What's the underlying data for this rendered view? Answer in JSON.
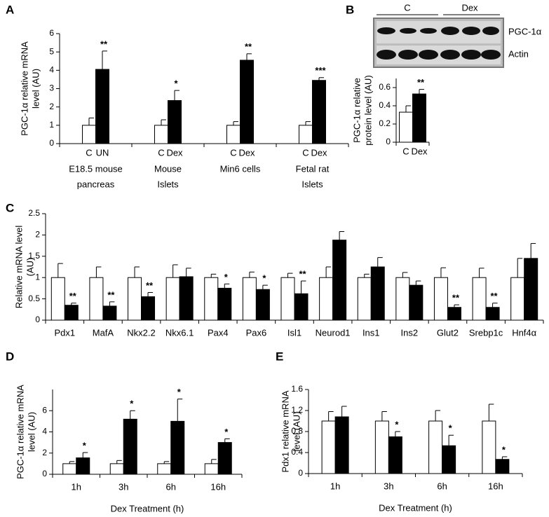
{
  "chart_data": [
    {
      "type": "bar",
      "panel": "A",
      "ylabel": [
        "PGC-1α relative mRNA",
        "level (AU)"
      ],
      "categories": [
        [
          "E18.5 mouse",
          "pancreas"
        ],
        [
          "Mouse",
          "Islets"
        ],
        [
          "Min6 cells"
        ],
        [
          "Fetal rat",
          "Islets"
        ]
      ],
      "bar_labels": [
        [
          "C",
          "UN"
        ],
        [
          "C",
          "Dex"
        ],
        [
          "C",
          "Dex"
        ],
        [
          "C",
          "Dex"
        ]
      ],
      "series": [
        {
          "color": "#ffffff",
          "values": [
            1,
            1,
            1,
            1
          ],
          "errors": [
            0.4,
            0.3,
            0.2,
            0.2
          ]
        },
        {
          "color": "#000000",
          "values": [
            4.05,
            2.35,
            4.55,
            3.45
          ],
          "errors": [
            1.0,
            0.55,
            0.35,
            0.15
          ],
          "significance": [
            "**",
            "*",
            "**",
            "***"
          ]
        }
      ],
      "ylim": [
        0,
        6
      ],
      "yticks": [
        0,
        1,
        2,
        3,
        4,
        5,
        6
      ]
    },
    {
      "type": "bar",
      "panel": "B",
      "ylabel": [
        "PGC-1α relative",
        "protein level (AU)"
      ],
      "blot": {
        "groups": [
          "C",
          "Dex"
        ],
        "bands": [
          "PGC-1α",
          "Actin"
        ]
      },
      "categories": [
        null
      ],
      "bar_labels": [
        [
          "C",
          "Dex"
        ]
      ],
      "series": [
        {
          "color": "#ffffff",
          "values": [
            0.33
          ],
          "errors": [
            0.07
          ]
        },
        {
          "color": "#000000",
          "values": [
            0.53
          ],
          "errors": [
            0.05
          ],
          "significance": [
            "**"
          ]
        }
      ],
      "ylim": [
        0,
        0.7
      ],
      "yticks": [
        0,
        0.2,
        0.4,
        0.6
      ]
    },
    {
      "type": "bar",
      "panel": "C",
      "ylabel": [
        "Relative mRNA level",
        "(AU)"
      ],
      "categories": [
        "Pdx1",
        "MafA",
        "Nkx2.2",
        "Nkx6.1",
        "Pax4",
        "Pax6",
        "Isl1",
        "Neurod1",
        "Ins1",
        "Ins2",
        "Glut2",
        "Srebp1c",
        "Hnf4α"
      ],
      "series": [
        {
          "color": "#ffffff",
          "values": [
            1,
            1,
            1,
            1,
            1,
            1,
            1,
            1,
            1,
            1,
            1,
            1,
            1
          ],
          "errors": [
            0.33,
            0.25,
            0.25,
            0.3,
            0.08,
            0.13,
            0.1,
            0.25,
            0.08,
            0.12,
            0.23,
            0.22,
            0.45
          ]
        },
        {
          "color": "#000000",
          "values": [
            0.35,
            0.33,
            0.55,
            1.02,
            0.75,
            0.72,
            0.62,
            1.88,
            1.25,
            0.82,
            0.3,
            0.3,
            1.45
          ],
          "errors": [
            0.05,
            0.1,
            0.1,
            0.2,
            0.1,
            0.1,
            0.3,
            0.2,
            0.22,
            0.1,
            0.06,
            0.1,
            0.35
          ],
          "significance": [
            "**",
            "**",
            "**",
            null,
            "*",
            "*",
            "**",
            null,
            null,
            null,
            "**",
            "**",
            null
          ]
        }
      ],
      "ylim": [
        0,
        2.5
      ],
      "yticks": [
        0,
        0.5,
        1,
        1.5,
        2,
        2.5
      ]
    },
    {
      "type": "bar",
      "panel": "D",
      "ylabel": [
        "PGC-1α relative mRNA",
        "level (AU)"
      ],
      "xlabel": "Dex Treatment (h)",
      "categories": [
        "1h",
        "3h",
        "6h",
        "16h"
      ],
      "series": [
        {
          "color": "#ffffff",
          "values": [
            1,
            1,
            1,
            1
          ],
          "errors": [
            0.2,
            0.3,
            0.2,
            0.4
          ]
        },
        {
          "color": "#000000",
          "values": [
            1.55,
            5.2,
            5.0,
            3.0
          ],
          "errors": [
            0.5,
            0.8,
            2.1,
            0.35
          ],
          "significance": [
            "*",
            "*",
            "*",
            "*"
          ]
        }
      ],
      "ylim": [
        0,
        8
      ],
      "yticks": [
        0,
        2,
        4,
        6
      ]
    },
    {
      "type": "bar",
      "panel": "E",
      "ylabel": [
        "Pdx1 relative mRNA",
        "level (AU)"
      ],
      "xlabel": "Dex Treatment (h)",
      "categories": [
        "1h",
        "3h",
        "6h",
        "16h"
      ],
      "series": [
        {
          "color": "#ffffff",
          "values": [
            1,
            1,
            1,
            1
          ],
          "errors": [
            0.18,
            0.18,
            0.2,
            0.32
          ]
        },
        {
          "color": "#000000",
          "values": [
            1.08,
            0.7,
            0.53,
            0.27
          ],
          "errors": [
            0.2,
            0.1,
            0.2,
            0.05
          ],
          "significance": [
            null,
            "*",
            "*",
            "*"
          ]
        }
      ],
      "ylim": [
        0,
        1.6
      ],
      "yticks": [
        0,
        0.4,
        0.8,
        1.2,
        1.6
      ]
    }
  ]
}
